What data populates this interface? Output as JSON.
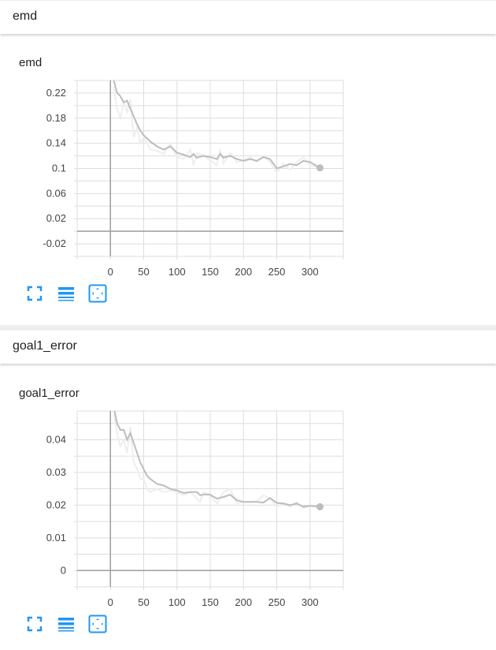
{
  "groups": [
    {
      "header": "emd",
      "card_title": "emd"
    },
    {
      "header": "goal1_error",
      "card_title": "goal1_error"
    }
  ],
  "toolbar": {
    "icons": [
      "fullscreen-icon",
      "toggle-log-scale-icon",
      "fit-domain-icon"
    ]
  },
  "colors": {
    "line": "#bdbdbd",
    "raw": "#eeeeee",
    "grid": "#dddddd",
    "axis": "#9e9e9e",
    "tool": "#2196f3"
  },
  "chart_data": [
    {
      "type": "line",
      "title": "emd",
      "xlim": [
        -50,
        350
      ],
      "ylim": [
        -0.04,
        0.24
      ],
      "grid": true,
      "xticks": [
        0,
        50,
        100,
        150,
        200,
        250,
        300
      ],
      "yticks": [
        0.22,
        0.18,
        0.14,
        0.1,
        0.06,
        0.02,
        -0.02
      ],
      "ygrid_step": 0.02,
      "smoothed": [
        [
          5,
          0.24
        ],
        [
          10,
          0.22
        ],
        [
          15,
          0.215
        ],
        [
          20,
          0.205
        ],
        [
          25,
          0.208
        ],
        [
          30,
          0.195
        ],
        [
          35,
          0.183
        ],
        [
          40,
          0.17
        ],
        [
          45,
          0.16
        ],
        [
          50,
          0.153
        ],
        [
          60,
          0.143
        ],
        [
          70,
          0.135
        ],
        [
          80,
          0.13
        ],
        [
          90,
          0.135
        ],
        [
          100,
          0.125
        ],
        [
          110,
          0.122
        ],
        [
          120,
          0.118
        ],
        [
          125,
          0.123
        ],
        [
          130,
          0.117
        ],
        [
          140,
          0.12
        ],
        [
          150,
          0.118
        ],
        [
          160,
          0.115
        ],
        [
          165,
          0.123
        ],
        [
          170,
          0.117
        ],
        [
          180,
          0.12
        ],
        [
          190,
          0.115
        ],
        [
          200,
          0.112
        ],
        [
          210,
          0.115
        ],
        [
          220,
          0.112
        ],
        [
          230,
          0.118
        ],
        [
          240,
          0.115
        ],
        [
          250,
          0.1
        ],
        [
          260,
          0.103
        ],
        [
          270,
          0.107
        ],
        [
          280,
          0.105
        ],
        [
          290,
          0.112
        ],
        [
          300,
          0.11
        ],
        [
          315,
          0.101
        ]
      ],
      "raw": [
        [
          5,
          0.23
        ],
        [
          10,
          0.195
        ],
        [
          15,
          0.18
        ],
        [
          20,
          0.205
        ],
        [
          25,
          0.19
        ],
        [
          30,
          0.21
        ],
        [
          35,
          0.15
        ],
        [
          40,
          0.165
        ],
        [
          45,
          0.14
        ],
        [
          50,
          0.15
        ],
        [
          60,
          0.13
        ],
        [
          70,
          0.128
        ],
        [
          80,
          0.123
        ],
        [
          90,
          0.14
        ],
        [
          100,
          0.118
        ],
        [
          110,
          0.115
        ],
        [
          120,
          0.13
        ],
        [
          125,
          0.105
        ],
        [
          130,
          0.125
        ],
        [
          140,
          0.12
        ],
        [
          150,
          0.113
        ],
        [
          160,
          0.105
        ],
        [
          165,
          0.13
        ],
        [
          170,
          0.108
        ],
        [
          180,
          0.125
        ],
        [
          190,
          0.11
        ],
        [
          200,
          0.113
        ],
        [
          210,
          0.118
        ],
        [
          220,
          0.11
        ],
        [
          230,
          0.12
        ],
        [
          240,
          0.11
        ],
        [
          250,
          0.093
        ],
        [
          260,
          0.108
        ],
        [
          270,
          0.098
        ],
        [
          280,
          0.11
        ],
        [
          290,
          0.118
        ],
        [
          300,
          0.105
        ],
        [
          315,
          0.101
        ]
      ]
    },
    {
      "type": "line",
      "title": "goal1_error",
      "xlim": [
        -50,
        350
      ],
      "ylim": [
        -0.005,
        0.0488
      ],
      "grid": true,
      "xticks": [
        0,
        50,
        100,
        150,
        200,
        250,
        300
      ],
      "yticks": [
        0.04,
        0.03,
        0.02,
        0.01,
        0
      ],
      "ygrid_step": 0.005,
      "smoothed": [
        [
          5,
          0.05
        ],
        [
          10,
          0.045
        ],
        [
          15,
          0.043
        ],
        [
          20,
          0.043
        ],
        [
          25,
          0.04
        ],
        [
          30,
          0.042
        ],
        [
          35,
          0.039
        ],
        [
          40,
          0.036
        ],
        [
          45,
          0.033
        ],
        [
          50,
          0.031
        ],
        [
          55,
          0.029
        ],
        [
          60,
          0.028
        ],
        [
          70,
          0.0265
        ],
        [
          80,
          0.026
        ],
        [
          90,
          0.025
        ],
        [
          100,
          0.0245
        ],
        [
          110,
          0.0237
        ],
        [
          120,
          0.024
        ],
        [
          130,
          0.024
        ],
        [
          135,
          0.023
        ],
        [
          140,
          0.0233
        ],
        [
          150,
          0.0232
        ],
        [
          160,
          0.022
        ],
        [
          170,
          0.0225
        ],
        [
          180,
          0.0232
        ],
        [
          190,
          0.0215
        ],
        [
          200,
          0.021
        ],
        [
          210,
          0.021
        ],
        [
          220,
          0.021
        ],
        [
          230,
          0.0208
        ],
        [
          240,
          0.0222
        ],
        [
          250,
          0.0207
        ],
        [
          260,
          0.0205
        ],
        [
          270,
          0.02
        ],
        [
          280,
          0.0205
        ],
        [
          290,
          0.0195
        ],
        [
          300,
          0.0198
        ],
        [
          315,
          0.0195
        ]
      ],
      "raw": [
        [
          5,
          0.048
        ],
        [
          10,
          0.042
        ],
        [
          15,
          0.038
        ],
        [
          20,
          0.04
        ],
        [
          25,
          0.036
        ],
        [
          30,
          0.044
        ],
        [
          35,
          0.033
        ],
        [
          40,
          0.031
        ],
        [
          45,
          0.028
        ],
        [
          50,
          0.028
        ],
        [
          55,
          0.025
        ],
        [
          60,
          0.024
        ],
        [
          70,
          0.025
        ],
        [
          80,
          0.024
        ],
        [
          90,
          0.0245
        ],
        [
          100,
          0.024
        ],
        [
          110,
          0.023
        ],
        [
          120,
          0.024
        ],
        [
          130,
          0.022
        ],
        [
          135,
          0.021
        ],
        [
          140,
          0.024
        ],
        [
          150,
          0.023
        ],
        [
          160,
          0.0205
        ],
        [
          170,
          0.024
        ],
        [
          180,
          0.025
        ],
        [
          190,
          0.0205
        ],
        [
          200,
          0.021
        ],
        [
          210,
          0.021
        ],
        [
          220,
          0.0212
        ],
        [
          230,
          0.023
        ],
        [
          240,
          0.022
        ],
        [
          250,
          0.0195
        ],
        [
          260,
          0.0205
        ],
        [
          270,
          0.0195
        ],
        [
          280,
          0.021
        ],
        [
          290,
          0.019
        ],
        [
          300,
          0.02
        ],
        [
          315,
          0.0195
        ]
      ]
    }
  ]
}
